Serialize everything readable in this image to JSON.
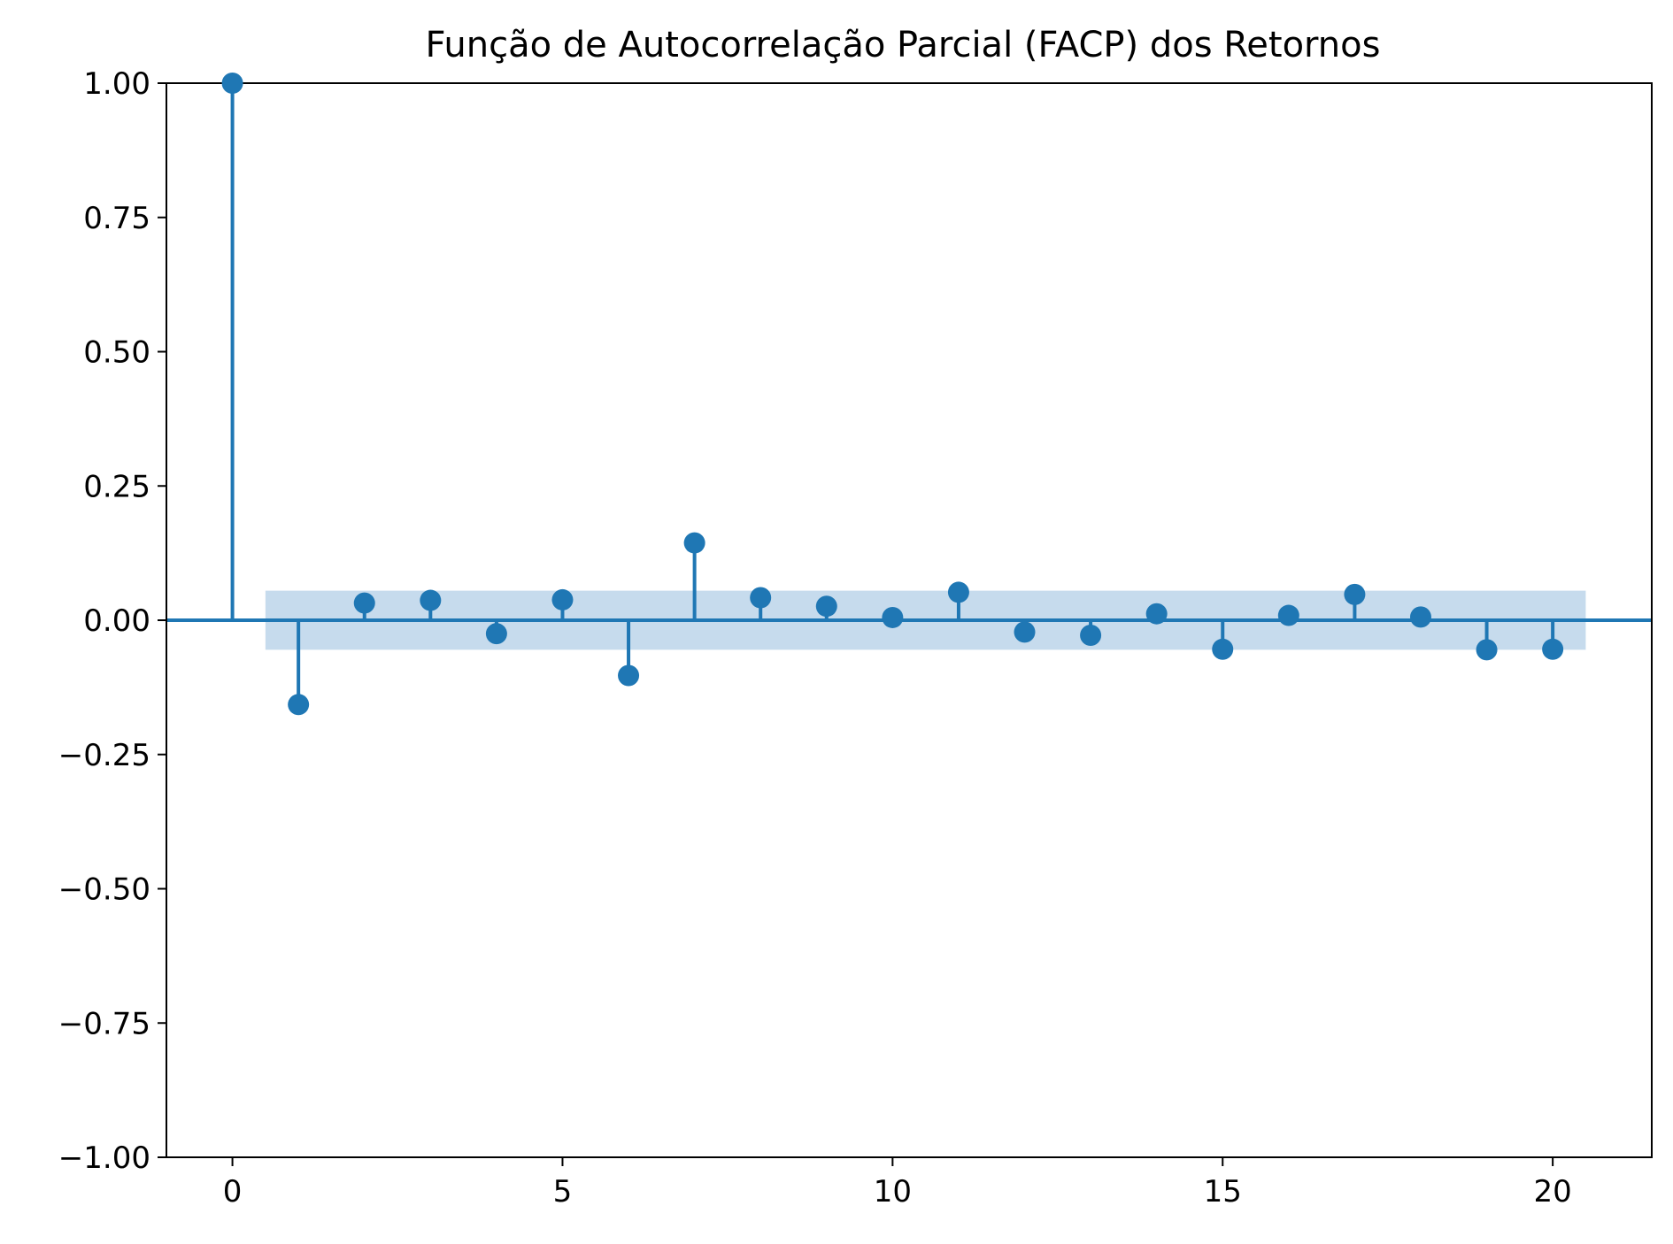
{
  "chart_data": {
    "type": "stem",
    "title": "Função de Autocorrelação Parcial (FACP) dos Retornos",
    "xlabel": "",
    "ylabel": "",
    "xlim": [
      -1,
      21.5
    ],
    "ylim": [
      -1.0,
      1.0
    ],
    "x_ticks": [
      0,
      5,
      10,
      15,
      20
    ],
    "x_tick_labels": [
      "0",
      "5",
      "10",
      "15",
      "20"
    ],
    "y_ticks": [
      1.0,
      0.75,
      0.5,
      0.25,
      0.0,
      -0.25,
      -0.5,
      -0.75,
      -1.0
    ],
    "y_tick_labels": [
      "1.00",
      "0.75",
      "0.50",
      "0.25",
      "0.00",
      "−0.25",
      "−0.50",
      "−0.75",
      "−1.00"
    ],
    "lags": [
      0,
      1,
      2,
      3,
      4,
      5,
      6,
      7,
      8,
      9,
      10,
      11,
      12,
      13,
      14,
      15,
      16,
      17,
      18,
      19,
      20
    ],
    "values": [
      1.0,
      -0.157,
      0.032,
      0.037,
      -0.025,
      0.038,
      -0.103,
      0.144,
      0.042,
      0.026,
      0.005,
      0.052,
      -0.022,
      -0.028,
      0.012,
      -0.054,
      0.009,
      0.048,
      0.006,
      -0.055,
      -0.054
    ],
    "confidence_band": {
      "x_range": [
        0.5,
        20.5
      ],
      "lower": -0.055,
      "upper": 0.055
    },
    "grid": false,
    "colors": {
      "stem": "#1f77b4",
      "marker": "#1f77b4",
      "band": "#c6dbed",
      "axis": "#000000"
    }
  }
}
